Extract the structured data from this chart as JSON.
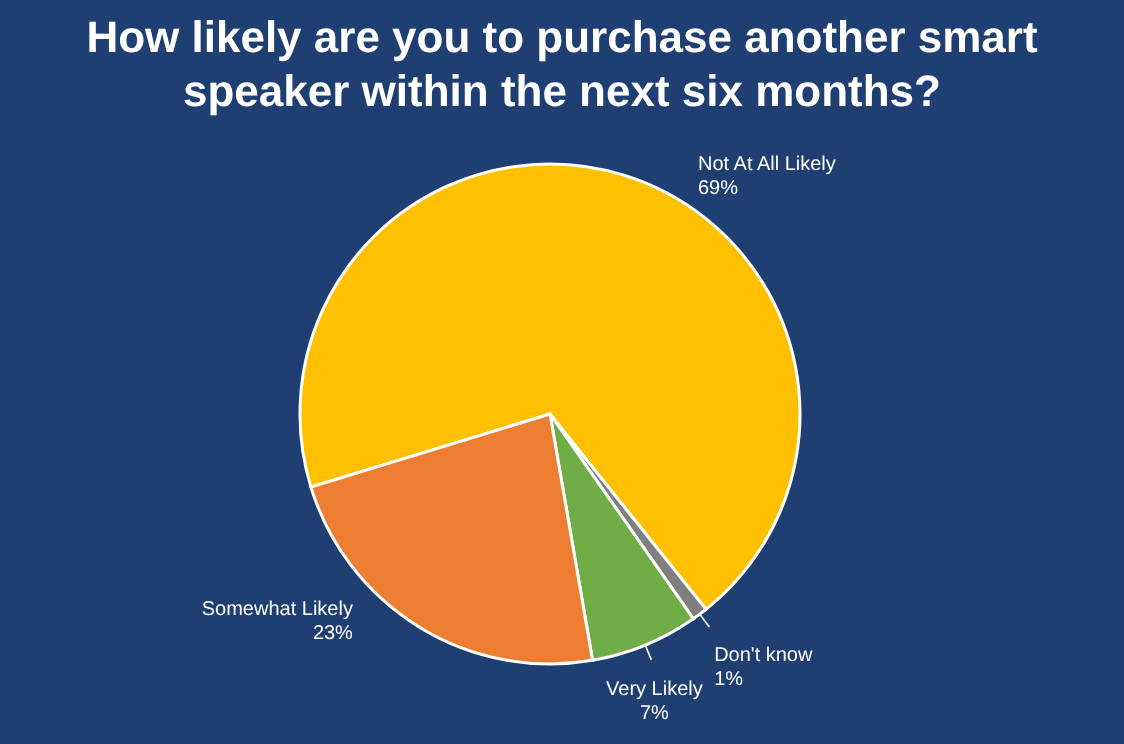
{
  "chart_data": {
    "type": "pie",
    "title": "How likely are you to purchase another smart speaker within the next six months?",
    "categories": [
      "Not At All Likely",
      "Don't know",
      "Very Likely",
      "Somewhat Likely"
    ],
    "values": [
      69,
      1,
      7,
      23
    ],
    "colors": [
      "#ffc000",
      "#7f7f7f",
      "#70ad47",
      "#ed7d31"
    ],
    "value_labels": [
      "69%",
      "1%",
      "7%",
      "23%"
    ]
  }
}
